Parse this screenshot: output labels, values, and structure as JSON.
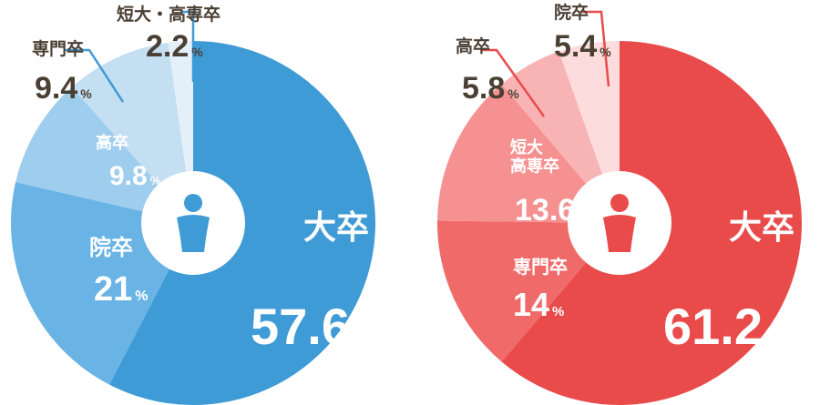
{
  "chart_data": [
    {
      "type": "donut",
      "unit": "%",
      "categories": [
        "大卒",
        "院卒",
        "高卒",
        "専門卒",
        "短大・高専卒"
      ],
      "values": [
        57.6,
        21,
        9.8,
        9.4,
        2.2
      ],
      "colors": [
        "#3f9bd5",
        "#69b3e5",
        "#9fcdee",
        "#c4def2",
        "#e4f0f9"
      ]
    },
    {
      "type": "donut",
      "unit": "%",
      "categories": [
        "大卒",
        "専門卒",
        "短大\n高専卒",
        "高卒",
        "院卒"
      ],
      "values": [
        61.2,
        14,
        13.6,
        5.8,
        5.4
      ],
      "colors": [
        "#e94b4b",
        "#f06a6a",
        "#f59191",
        "#f8b4b4",
        "#fcdcdc"
      ]
    }
  ]
}
